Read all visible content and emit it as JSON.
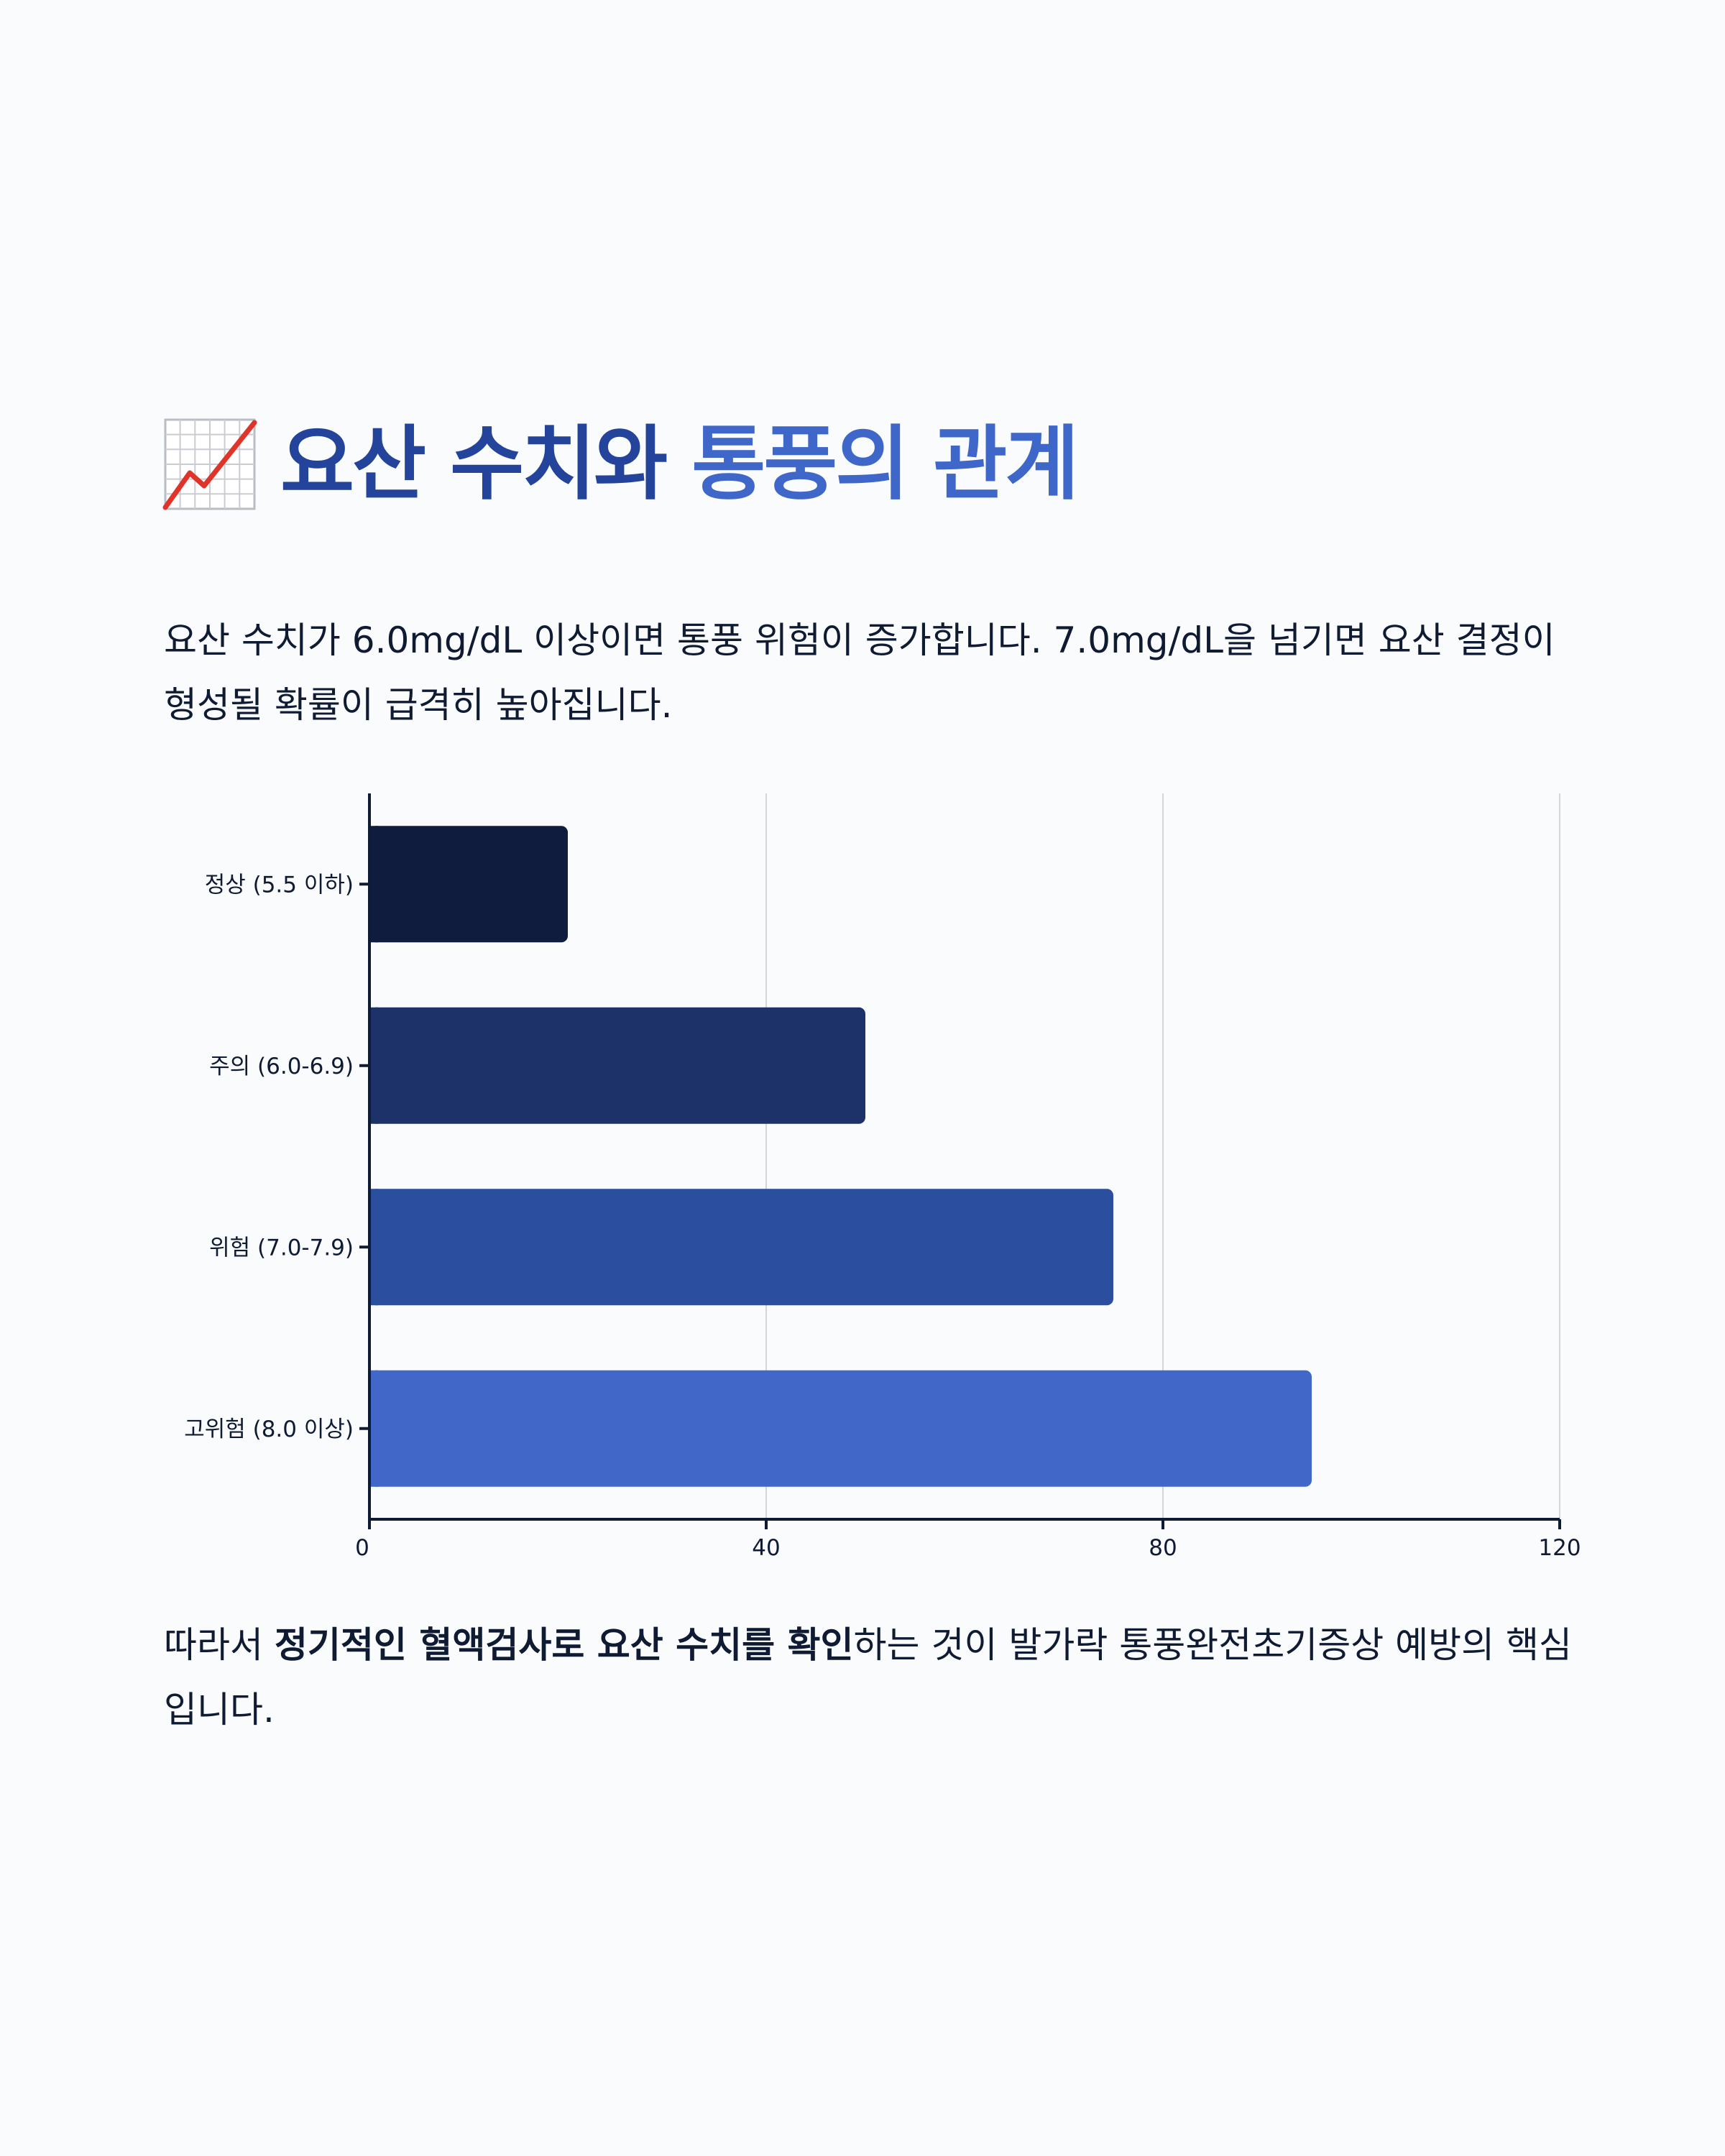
{
  "header": {
    "icon": "chart-increasing-icon",
    "title_part1": "요산 수치와 ",
    "title_part2": "통풍의 관계"
  },
  "intro": "요산 수치가 6.0mg/dL 이상이면 통풍 위험이 증가합니다. 7.0mg/dL을 넘기면 요산 결정이 형성될 확률이 급격히 높아집니다.",
  "outro": {
    "before": "따라서 ",
    "emphasis": "정기적인 혈액검사로 요산 수치를 확인",
    "after": "하는 것이 발가락 통풍완전초기증상 예방의 핵심입니다."
  },
  "chart_data": {
    "type": "bar",
    "orientation": "horizontal",
    "categories": [
      "정상 (5.5 이하)",
      "주의 (6.0-6.9)",
      "위험 (7.0-7.9)",
      "고위험 (8.0 이상)"
    ],
    "values": [
      20,
      50,
      75,
      95
    ],
    "colors": [
      "#0f1c3d",
      "#1d3269",
      "#2c4e9f",
      "#4167c9"
    ],
    "xlim": [
      0,
      120
    ],
    "xticks": [
      0,
      40,
      80,
      120
    ],
    "grid": true,
    "title": "",
    "xlabel": "",
    "ylabel": ""
  }
}
